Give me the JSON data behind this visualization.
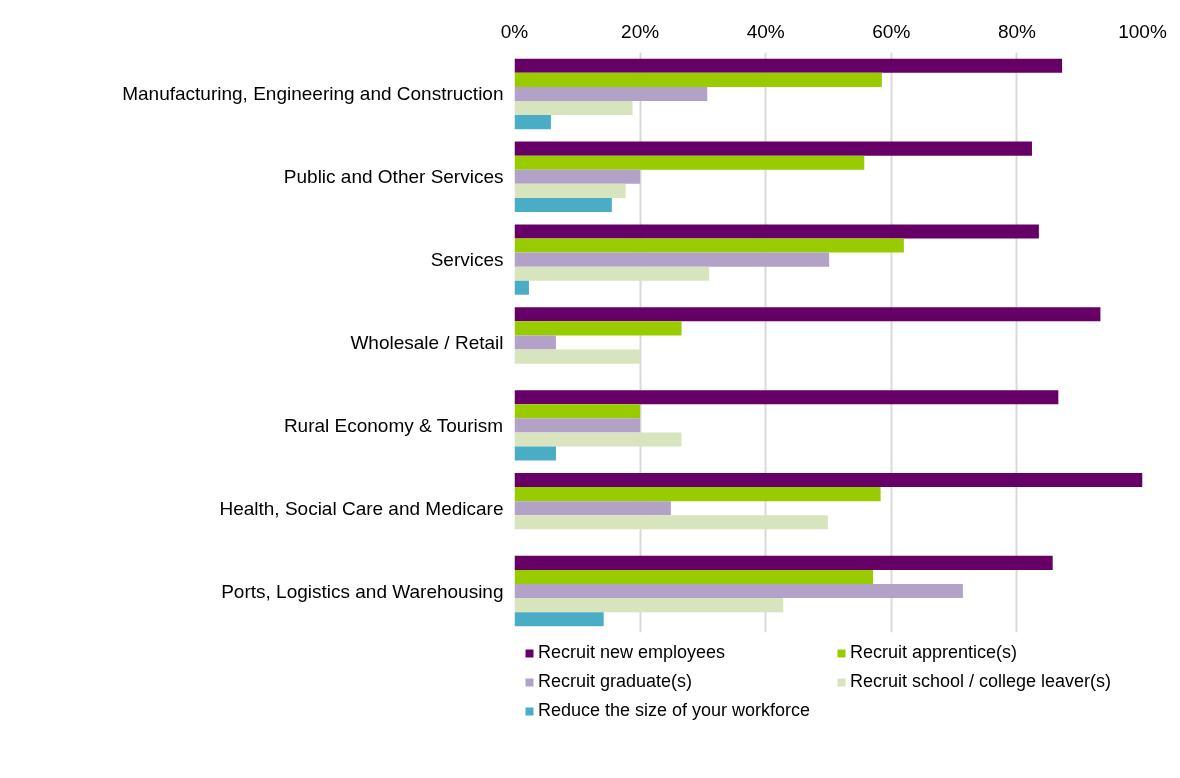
{
  "chart_data": {
    "type": "bar",
    "orientation": "horizontal",
    "categories": [
      "Manufacturing, Engineering and Construction",
      "Public and Other Services",
      "Services",
      "Wholesale / Retail",
      "Rural Economy & Tourism",
      "Health, Social Care and Medicare",
      "Ports, Logistics and Warehousing"
    ],
    "series": [
      {
        "name": "Recruit new employees",
        "color": "#660066",
        "values": [
          87.2,
          82.4,
          83.5,
          93.3,
          86.6,
          100,
          85.7
        ]
      },
      {
        "name": "Recruit apprentice(s)",
        "color": "#99cc00",
        "values": [
          58.5,
          55.7,
          62.0,
          26.6,
          20.0,
          58.3,
          57.1
        ]
      },
      {
        "name": "Recruit graduate(s)",
        "color": "#b3a2c7",
        "values": [
          30.7,
          20.0,
          50.1,
          6.6,
          20.0,
          24.9,
          71.4
        ]
      },
      {
        "name": "Recruit school / college leaver(s)",
        "color": "#d7e4bd",
        "values": [
          18.8,
          17.7,
          31.0,
          20.0,
          26.6,
          49.9,
          42.8
        ]
      },
      {
        "name": "Reduce the size of your workforce",
        "color": "#4bacc6",
        "values": [
          5.8,
          15.5,
          2.3,
          null,
          6.6,
          null,
          14.2
        ]
      }
    ],
    "xlim": [
      0,
      100
    ],
    "xticks": [
      {
        "value": 0,
        "label": "0%"
      },
      {
        "value": 20,
        "label": "20%"
      },
      {
        "value": 40,
        "label": "40%"
      },
      {
        "value": 60,
        "label": "60%"
      },
      {
        "value": 80,
        "label": "80%"
      },
      {
        "value": 100,
        "label": "100%"
      }
    ],
    "grid": "x",
    "legend": "bottom"
  }
}
